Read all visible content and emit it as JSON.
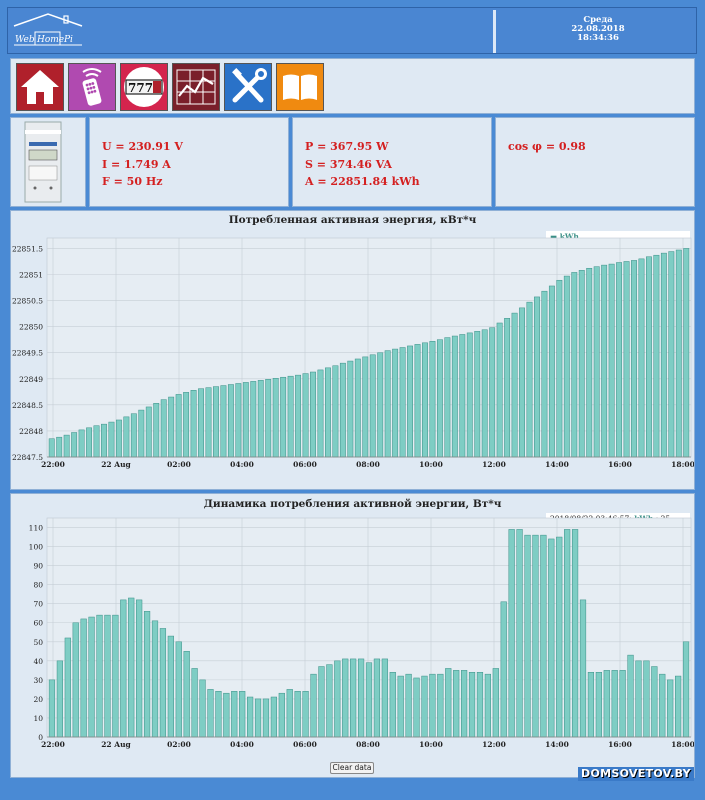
{
  "header": {
    "logo": {
      "text1": "Web",
      "text2": "Home",
      "text3": "Pi"
    },
    "datetime": {
      "day": "Среда",
      "date": "22.08.2018",
      "time": "18:34:36"
    }
  },
  "toolbar": {
    "items": [
      {
        "name": "home",
        "bg": "#b0202b"
      },
      {
        "name": "remote",
        "bg": "#b04ab0"
      },
      {
        "name": "meter",
        "bg": "#d4244d",
        "text": "777"
      },
      {
        "name": "chart",
        "bg": "#7a1f2a"
      },
      {
        "name": "settings",
        "bg": "#2a72c8"
      },
      {
        "name": "book",
        "bg": "#f08a10"
      }
    ]
  },
  "readings": {
    "voltage": "U = 230.91 V",
    "current": "I = 1.749 A",
    "frequency": "F = 50 Hz",
    "power": "P = 367.95 W",
    "apparent": "S = 374.46 VA",
    "energy": "A = 22851.84 kWh",
    "cosphi": "cos φ = 0.98"
  },
  "chart_data": [
    {
      "type": "bar",
      "title": "Потребленная активная энергия, кВт*ч",
      "legend": "kWh",
      "ylim": [
        22847.5,
        22851.7
      ],
      "yticks": [
        "22847.5",
        "22848",
        "22848.5",
        "22849",
        "22849.5",
        "22850",
        "22850.5",
        "22851",
        "22851.5"
      ],
      "xticks": [
        "22:00",
        "22 Aug",
        "02:00",
        "04:00",
        "06:00",
        "08:00",
        "10:00",
        "12:00",
        "14:00",
        "16:00",
        "18:00"
      ],
      "values": [
        22847.85,
        22847.88,
        22847.92,
        22847.97,
        22848.02,
        22848.06,
        22848.1,
        22848.13,
        22848.17,
        22848.21,
        22848.27,
        22848.33,
        22848.4,
        22848.46,
        22848.53,
        22848.6,
        22848.65,
        22848.7,
        22848.74,
        22848.78,
        22848.81,
        22848.83,
        22848.85,
        22848.87,
        22848.89,
        22848.91,
        22848.93,
        22848.95,
        22848.97,
        22848.99,
        22849.01,
        22849.03,
        22849.05,
        22849.07,
        22849.1,
        22849.13,
        22849.17,
        22849.21,
        22849.25,
        22849.3,
        22849.34,
        22849.38,
        22849.42,
        22849.46,
        22849.5,
        22849.54,
        22849.57,
        22849.6,
        22849.63,
        22849.66,
        22849.69,
        22849.72,
        22849.75,
        22849.79,
        22849.82,
        22849.85,
        22849.88,
        22849.91,
        22849.94,
        22849.98,
        22850.07,
        22850.16,
        22850.26,
        22850.36,
        22850.47,
        22850.57,
        22850.68,
        22850.78,
        22850.89,
        22850.97,
        22851.04,
        22851.08,
        22851.12,
        22851.15,
        22851.18,
        22851.2,
        22851.23,
        22851.25,
        22851.27,
        22851.3,
        22851.34,
        22851.37,
        22851.41,
        22851.44,
        22851.47,
        22851.5
      ]
    },
    {
      "type": "bar",
      "title": "Динамика потребления активной энергии, Вт*ч",
      "legend": {
        "date": "2018/08/22 03:46:57:",
        "series": "kWh",
        "value": ": 25"
      },
      "ylim": [
        0,
        115
      ],
      "yticks": [
        "0",
        "10",
        "20",
        "30",
        "40",
        "50",
        "60",
        "70",
        "80",
        "90",
        "100",
        "110"
      ],
      "xticks": [
        "22:00",
        "22 Aug",
        "02:00",
        "04:00",
        "06:00",
        "08:00",
        "10:00",
        "12:00",
        "14:00",
        "16:00",
        "18:00"
      ],
      "values": [
        30,
        40,
        52,
        60,
        62,
        63,
        64,
        64,
        64,
        72,
        73,
        72,
        66,
        61,
        57,
        53,
        50,
        45,
        36,
        30,
        25,
        24,
        23,
        24,
        24,
        21,
        20,
        20,
        21,
        23,
        25,
        24,
        24,
        33,
        37,
        38,
        40,
        41,
        41,
        41,
        39,
        41,
        41,
        34,
        32,
        33,
        31,
        32,
        33,
        33,
        36,
        35,
        35,
        34,
        34,
        33,
        36,
        71,
        109,
        109,
        106,
        106,
        106,
        104,
        105,
        109,
        109,
        72,
        34,
        34,
        35,
        35,
        35,
        43,
        40,
        40,
        37,
        33,
        30,
        32,
        50
      ]
    }
  ],
  "controls": {
    "clear_label": "Clear data"
  },
  "watermark": "DOMSOVETOV.BY",
  "colors": {
    "bar": "#7ecdc4",
    "bar_stroke": "#3a8f86",
    "accent": "#4a86d2",
    "text_red": "#d42020"
  }
}
